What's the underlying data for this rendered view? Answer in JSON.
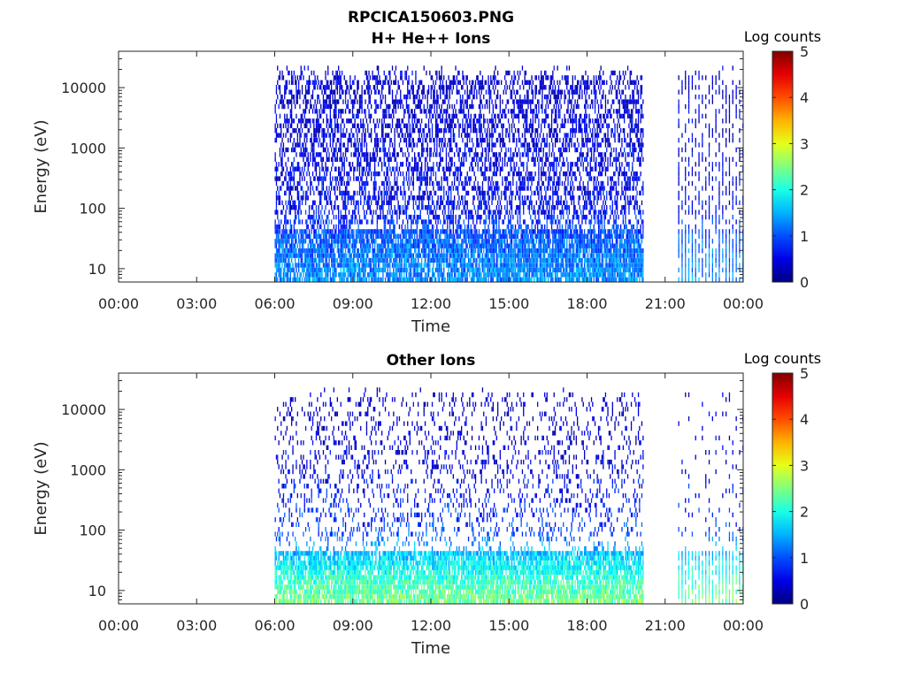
{
  "figure_title": "RPCICA150603.PNG",
  "chart_data": [
    {
      "type": "heatmap",
      "title": "H+ He++ Ions",
      "xlabel": "Time",
      "ylabel": "Energy (eV)",
      "x_ticks": [
        "00:00",
        "03:00",
        "06:00",
        "09:00",
        "12:00",
        "15:00",
        "18:00",
        "21:00",
        "00:00"
      ],
      "x_range_hours": [
        0,
        24
      ],
      "y_ticks": [
        "10",
        "100",
        "1000",
        "10000"
      ],
      "y_scale": "log",
      "y_range": [
        6,
        40000
      ],
      "data_intervals_hours": [
        [
          6.0,
          20.15
        ],
        [
          21.5,
          24.0
        ]
      ],
      "colorbar": {
        "title": "Log counts",
        "ticks": [
          "0",
          "1",
          "2",
          "3",
          "4",
          "5"
        ],
        "range": [
          0,
          5
        ],
        "colormap": "jet"
      },
      "intensity_profile": [
        {
          "energy_ev": 8,
          "log_counts": 1.3
        },
        {
          "energy_ev": 30,
          "log_counts": 1.1
        },
        {
          "energy_ev": 100,
          "log_counts": 0.6
        },
        {
          "energy_ev": 1000,
          "log_counts": 0.5
        },
        {
          "energy_ev": 10000,
          "log_counts": 0.4
        }
      ]
    },
    {
      "type": "heatmap",
      "title": "Other Ions",
      "xlabel": "Time",
      "ylabel": "Energy (eV)",
      "x_ticks": [
        "00:00",
        "03:00",
        "06:00",
        "09:00",
        "12:00",
        "15:00",
        "18:00",
        "21:00",
        "00:00"
      ],
      "x_range_hours": [
        0,
        24
      ],
      "y_ticks": [
        "10",
        "100",
        "1000",
        "10000"
      ],
      "y_scale": "log",
      "y_range": [
        6,
        40000
      ],
      "data_intervals_hours": [
        [
          6.0,
          20.15
        ],
        [
          21.5,
          24.0
        ]
      ],
      "colorbar": {
        "title": "Log counts",
        "ticks": [
          "0",
          "1",
          "2",
          "3",
          "4",
          "5"
        ],
        "range": [
          0,
          5
        ],
        "colormap": "jet"
      },
      "intensity_profile": [
        {
          "energy_ev": 8,
          "log_counts": 2.4
        },
        {
          "energy_ev": 30,
          "log_counts": 1.8
        },
        {
          "energy_ev": 100,
          "log_counts": 0.9
        },
        {
          "energy_ev": 1000,
          "log_counts": 0.5
        },
        {
          "energy_ev": 10000,
          "log_counts": 0.3
        }
      ]
    }
  ]
}
